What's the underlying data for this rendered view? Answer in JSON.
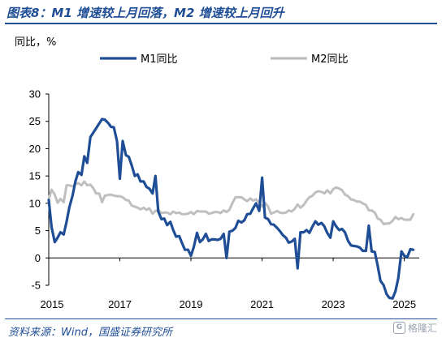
{
  "header": {
    "title": "图表8：M1 增速较上月回落，M2 增速较上月回升"
  },
  "footer": {
    "source": "资料来源：Wind，国盛证券研究所"
  },
  "watermark": {
    "text": "格隆汇",
    "logo_glyph": "G",
    "color": "#9aa3b0"
  },
  "chart_data": {
    "type": "line",
    "title": "",
    "ylabel": "同比，%",
    "xlabel": "",
    "ylim": [
      -5,
      30
    ],
    "xlim": [
      2015.0,
      2025.42
    ],
    "yticks": [
      -5,
      0,
      5,
      10,
      15,
      20,
      25,
      30
    ],
    "xticks": [
      2015,
      2017,
      2019,
      2021,
      2023,
      2025
    ],
    "legend_position": "top",
    "grid": false,
    "series": [
      {
        "name": "M1同比",
        "color": "#1f4e96",
        "x": [
          2015.0,
          2015.08,
          2015.17,
          2015.25,
          2015.33,
          2015.42,
          2015.5,
          2015.58,
          2015.67,
          2015.75,
          2015.83,
          2015.92,
          2016.0,
          2016.08,
          2016.17,
          2016.25,
          2016.33,
          2016.42,
          2016.5,
          2016.58,
          2016.67,
          2016.75,
          2016.83,
          2016.92,
          2017.0,
          2017.08,
          2017.17,
          2017.25,
          2017.33,
          2017.42,
          2017.5,
          2017.58,
          2017.67,
          2017.75,
          2017.83,
          2017.92,
          2018.0,
          2018.08,
          2018.17,
          2018.25,
          2018.33,
          2018.42,
          2018.5,
          2018.58,
          2018.67,
          2018.75,
          2018.83,
          2018.92,
          2019.0,
          2019.08,
          2019.17,
          2019.25,
          2019.33,
          2019.42,
          2019.5,
          2019.58,
          2019.67,
          2019.75,
          2019.83,
          2019.92,
          2020.0,
          2020.08,
          2020.17,
          2020.25,
          2020.33,
          2020.42,
          2020.5,
          2020.58,
          2020.67,
          2020.75,
          2020.83,
          2020.92,
          2021.0,
          2021.08,
          2021.17,
          2021.25,
          2021.33,
          2021.42,
          2021.5,
          2021.58,
          2021.67,
          2021.75,
          2021.83,
          2021.92,
          2022.0,
          2022.08,
          2022.17,
          2022.25,
          2022.33,
          2022.42,
          2022.5,
          2022.58,
          2022.67,
          2022.75,
          2022.83,
          2022.92,
          2023.0,
          2023.08,
          2023.17,
          2023.25,
          2023.33,
          2023.42,
          2023.5,
          2023.58,
          2023.67,
          2023.75,
          2023.83,
          2023.92,
          2024.0,
          2024.08,
          2024.17,
          2024.25,
          2024.33,
          2024.42,
          2024.5,
          2024.58,
          2024.67,
          2024.75,
          2024.83,
          2024.92,
          2025.0,
          2025.08,
          2025.17,
          2025.25
        ],
        "values": [
          10.6,
          5.6,
          2.9,
          3.7,
          4.7,
          4.3,
          6.6,
          9.3,
          11.4,
          14.0,
          15.7,
          15.2,
          18.6,
          17.4,
          22.1,
          22.9,
          23.7,
          24.6,
          25.4,
          25.3,
          24.7,
          24.0,
          23.9,
          21.4,
          14.5,
          21.4,
          18.8,
          18.5,
          17.0,
          15.0,
          15.3,
          14.0,
          14.0,
          13.0,
          12.7,
          11.8,
          15.0,
          8.5,
          7.1,
          7.2,
          6.0,
          6.6,
          5.1,
          3.9,
          4.0,
          2.7,
          1.5,
          1.5,
          0.4,
          2.0,
          4.6,
          2.9,
          3.4,
          4.4,
          3.1,
          3.4,
          3.4,
          3.3,
          3.5,
          4.4,
          0.0,
          4.8,
          5.0,
          5.5,
          6.8,
          6.5,
          6.9,
          8.0,
          8.1,
          9.1,
          10.0,
          8.6,
          14.7,
          7.4,
          7.1,
          6.2,
          6.1,
          5.5,
          4.9,
          4.2,
          3.7,
          2.8,
          3.0,
          3.5,
          -1.9,
          4.7,
          4.7,
          5.1,
          4.6,
          5.8,
          6.7,
          6.1,
          6.4,
          5.8,
          4.6,
          3.7,
          6.7,
          5.8,
          5.1,
          5.3,
          4.7,
          3.1,
          2.3,
          2.2,
          2.1,
          1.9,
          1.3,
          1.3,
          5.9,
          1.2,
          1.1,
          -1.4,
          -4.2,
          -5.0,
          -6.6,
          -7.3,
          -7.4,
          -6.1,
          -3.7,
          1.2,
          0.4,
          0.1,
          1.6,
          1.5
        ]
      },
      {
        "name": "M2同比",
        "color": "#bfbfbf",
        "x": [
          2015.0,
          2015.08,
          2015.17,
          2015.25,
          2015.33,
          2015.42,
          2015.5,
          2015.58,
          2015.67,
          2015.75,
          2015.83,
          2015.92,
          2016.0,
          2016.08,
          2016.17,
          2016.25,
          2016.33,
          2016.42,
          2016.5,
          2016.58,
          2016.67,
          2016.75,
          2016.83,
          2016.92,
          2017.0,
          2017.08,
          2017.17,
          2017.25,
          2017.33,
          2017.42,
          2017.5,
          2017.58,
          2017.67,
          2017.75,
          2017.83,
          2017.92,
          2018.0,
          2018.08,
          2018.17,
          2018.25,
          2018.33,
          2018.42,
          2018.5,
          2018.58,
          2018.67,
          2018.75,
          2018.83,
          2018.92,
          2019.0,
          2019.08,
          2019.17,
          2019.25,
          2019.33,
          2019.42,
          2019.5,
          2019.58,
          2019.67,
          2019.75,
          2019.83,
          2019.92,
          2020.0,
          2020.08,
          2020.17,
          2020.25,
          2020.33,
          2020.42,
          2020.5,
          2020.58,
          2020.67,
          2020.75,
          2020.83,
          2020.92,
          2021.0,
          2021.08,
          2021.17,
          2021.25,
          2021.33,
          2021.42,
          2021.5,
          2021.58,
          2021.67,
          2021.75,
          2021.83,
          2021.92,
          2022.0,
          2022.08,
          2022.17,
          2022.25,
          2022.33,
          2022.42,
          2022.5,
          2022.58,
          2022.67,
          2022.75,
          2022.83,
          2022.92,
          2023.0,
          2023.08,
          2023.17,
          2023.25,
          2023.33,
          2023.42,
          2023.5,
          2023.58,
          2023.67,
          2023.75,
          2023.83,
          2023.92,
          2024.0,
          2024.08,
          2024.17,
          2024.25,
          2024.33,
          2024.42,
          2024.5,
          2024.58,
          2024.67,
          2024.75,
          2024.83,
          2024.92,
          2025.0,
          2025.08,
          2025.17,
          2025.25
        ],
        "values": [
          10.8,
          12.5,
          11.6,
          10.1,
          10.8,
          10.2,
          13.3,
          13.3,
          13.1,
          13.5,
          13.7,
          13.3,
          14.0,
          13.3,
          13.4,
          12.8,
          11.8,
          11.8,
          10.2,
          11.4,
          11.5,
          11.6,
          11.4,
          11.3,
          11.3,
          11.1,
          10.6,
          10.5,
          9.6,
          9.4,
          9.2,
          8.9,
          9.2,
          8.8,
          9.1,
          8.1,
          8.6,
          8.8,
          8.2,
          8.3,
          8.3,
          8.0,
          8.5,
          8.2,
          8.3,
          8.0,
          8.0,
          8.1,
          8.4,
          8.0,
          8.6,
          8.5,
          8.5,
          8.5,
          8.1,
          8.2,
          8.4,
          8.4,
          8.2,
          8.7,
          8.4,
          8.8,
          10.1,
          11.1,
          11.1,
          11.1,
          10.7,
          10.4,
          10.9,
          10.5,
          10.7,
          10.1,
          9.4,
          10.1,
          9.4,
          8.1,
          8.3,
          8.6,
          8.3,
          8.2,
          8.3,
          8.7,
          8.5,
          9.0,
          9.8,
          9.2,
          9.7,
          10.5,
          11.1,
          11.4,
          12.0,
          12.2,
          12.1,
          11.8,
          12.4,
          11.8,
          12.6,
          12.9,
          12.7,
          12.4,
          11.6,
          11.3,
          10.7,
          10.6,
          10.3,
          10.3,
          10.0,
          9.7,
          8.7,
          8.7,
          8.3,
          7.2,
          7.0,
          6.2,
          6.3,
          6.3,
          6.8,
          7.5,
          7.1,
          7.3,
          7.0,
          7.0,
          7.0,
          8.0
        ]
      }
    ]
  }
}
